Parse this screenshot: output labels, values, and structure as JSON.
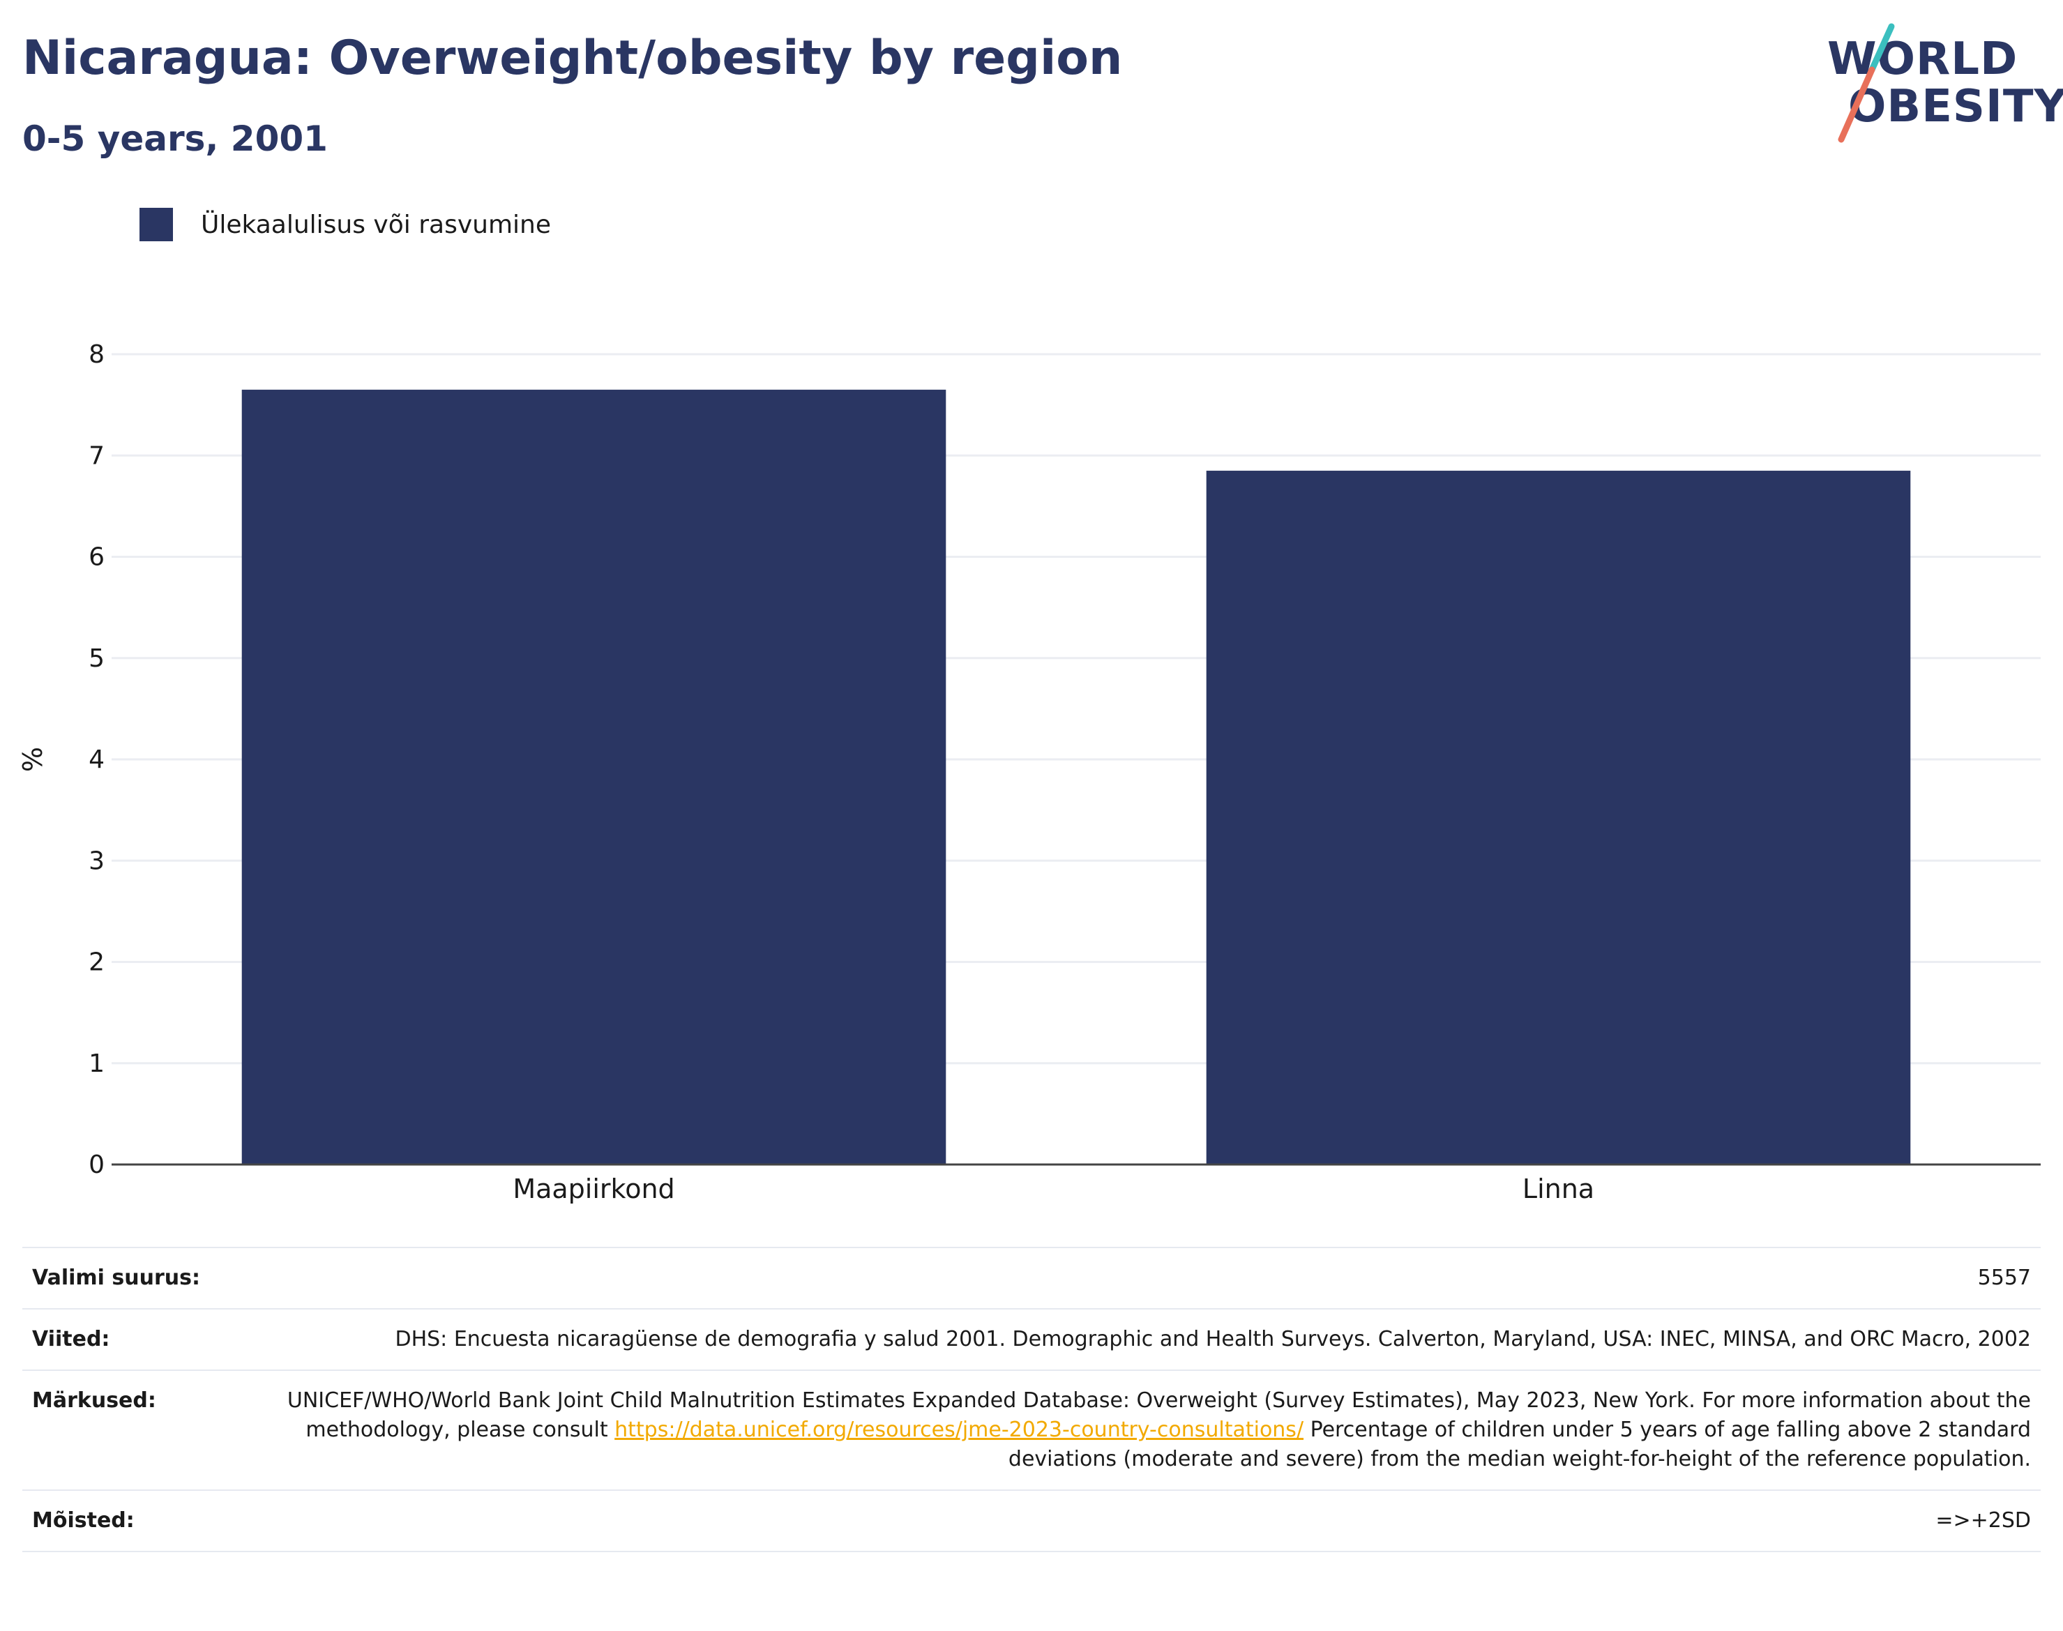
{
  "header": {
    "title": "Nicaragua: Overweight/obesity by region",
    "subtitle": "0-5 years, 2001"
  },
  "logo": {
    "line1": "WORLD",
    "line2": "OBESITY"
  },
  "legend": {
    "label": "Ülekaalulisus või rasvumine",
    "color": "#2a3663"
  },
  "chart_data": {
    "type": "bar",
    "title": "Nicaragua: Overweight/obesity by region",
    "subtitle": "0-5 years, 2001",
    "categories": [
      "Maapiirkond",
      "Linna"
    ],
    "series": [
      {
        "name": "Ülekaalulisus või rasvumine",
        "values": [
          7.65,
          6.85
        ]
      }
    ],
    "xlabel": "",
    "ylabel": "%",
    "ylim": [
      0,
      8
    ],
    "yticks": [
      0,
      1,
      2,
      3,
      4,
      5,
      6,
      7,
      8
    ],
    "grid": true,
    "legend_position": "top-left",
    "bar_color": "#2a3663"
  },
  "info": {
    "sample_size": {
      "key": "Valimi suurus:",
      "value": "5557"
    },
    "references": {
      "key": "Viited:",
      "value": "DHS: Encuesta nicaragüense de demografia y salud 2001. Demographic and Health Surveys. Calverton, Maryland, USA: INEC, MINSA, and ORC Macro, 2002"
    },
    "notes": {
      "key": "Märkused:",
      "text_before": "UNICEF/WHO/World Bank Joint Child Malnutrition Estimates Expanded Database: Overweight (Survey Estimates), May 2023, New York. For more information about the methodology, please consult ",
      "link": "https://data.unicef.org/resources/jme-2023-country-consultations/",
      "text_after": " Percentage of children under 5 years of age falling above 2 standard deviations (moderate and severe) from the median weight-for-height of the reference population."
    },
    "definitions": {
      "key": "Mõisted:",
      "value": "=>+2SD"
    }
  }
}
